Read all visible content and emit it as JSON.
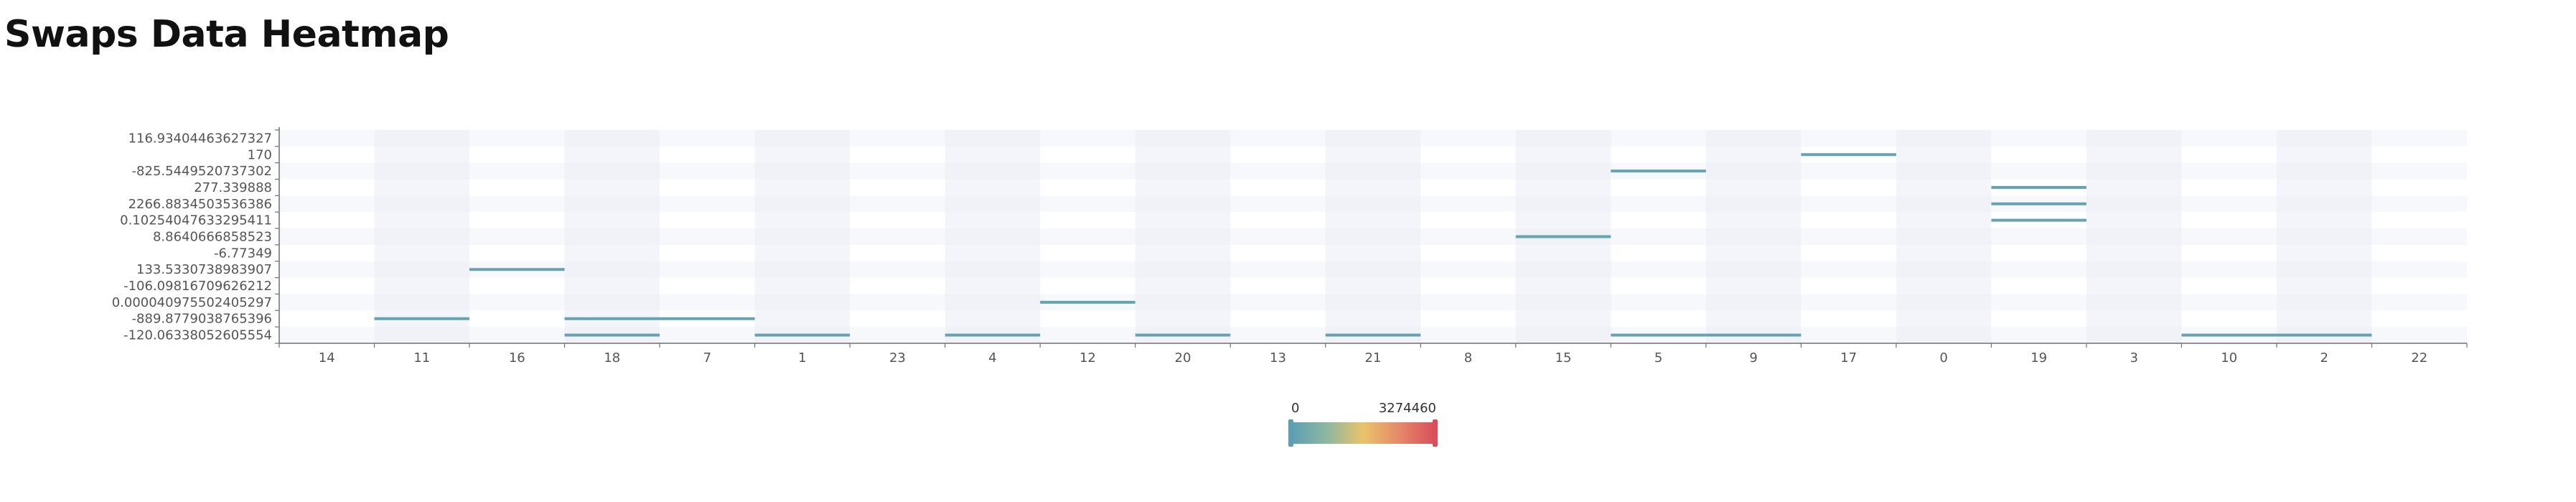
{
  "title": "Swaps Data Heatmap",
  "chart_data": {
    "type": "heatmap",
    "title": "Swaps Data Heatmap",
    "x_categories": [
      "14",
      "11",
      "16",
      "18",
      "7",
      "1",
      "23",
      "4",
      "12",
      "20",
      "13",
      "21",
      "8",
      "15",
      "5",
      "9",
      "17",
      "0",
      "19",
      "3",
      "10",
      "2",
      "22"
    ],
    "y_categories": [
      "-120.06338052605554",
      "-889.8779038765396",
      "0.000040975502405297",
      "-106.09816709626212",
      "133.5330738983907",
      "-6.77349",
      "8.8640666858523",
      "0.10254047633295411",
      "2266.8834503536386",
      "277.339888",
      "-825.5449520737302",
      "170",
      "116.93404463627327"
    ],
    "cells": [
      {
        "x": "11",
        "y": "-889.8779038765396",
        "value": 150000
      },
      {
        "x": "16",
        "y": "133.5330738983907",
        "value": 150000
      },
      {
        "x": "18",
        "y": "-889.8779038765396",
        "value": 150000
      },
      {
        "x": "18",
        "y": "-120.06338052605554",
        "value": 150000
      },
      {
        "x": "7",
        "y": "-889.8779038765396",
        "value": 150000
      },
      {
        "x": "1",
        "y": "-120.06338052605554",
        "value": 150000
      },
      {
        "x": "4",
        "y": "-120.06338052605554",
        "value": 150000
      },
      {
        "x": "12",
        "y": "0.000040975502405297",
        "value": 150000
      },
      {
        "x": "20",
        "y": "-120.06338052605554",
        "value": 150000
      },
      {
        "x": "21",
        "y": "-120.06338052605554",
        "value": 150000
      },
      {
        "x": "15",
        "y": "8.8640666858523",
        "value": 150000
      },
      {
        "x": "5",
        "y": "-825.5449520737302",
        "value": 150000
      },
      {
        "x": "5",
        "y": "-120.06338052605554",
        "value": 150000
      },
      {
        "x": "9",
        "y": "-120.06338052605554",
        "value": 150000
      },
      {
        "x": "17",
        "y": "170",
        "value": 150000
      },
      {
        "x": "19",
        "y": "277.339888",
        "value": 150000
      },
      {
        "x": "19",
        "y": "2266.8834503536386",
        "value": 150000
      },
      {
        "x": "19",
        "y": "0.10254047633295411",
        "value": 150000
      },
      {
        "x": "10",
        "y": "-120.06338052605554",
        "value": 150000
      },
      {
        "x": "2",
        "y": "-120.06338052605554",
        "value": 150000
      }
    ],
    "visual_map": {
      "min": 0,
      "max": 3274460,
      "min_label": "0",
      "max_label": "3274460",
      "colors": [
        "#5b9fb4",
        "#8fb7a0",
        "#e9c46a",
        "#e6896a",
        "#d94f5c"
      ],
      "placement": "bottom-center"
    },
    "grid": true,
    "split_area": true,
    "legend": "none"
  }
}
